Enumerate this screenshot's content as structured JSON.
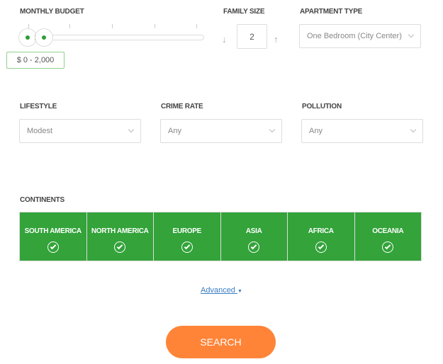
{
  "budget": {
    "label": "MONTHLY BUDGET",
    "value": "$ 0 - 2,000"
  },
  "family": {
    "label": "FAMILY SIZE",
    "value": "2",
    "down_icon": "arrow-down",
    "up_icon": "arrow-up"
  },
  "apartment": {
    "label": "APARTMENT TYPE",
    "value": "One Bedroom (City Center)"
  },
  "lifestyle": {
    "label": "LIFESTYLE",
    "value": "Modest"
  },
  "crime": {
    "label": "CRIME RATE",
    "value": "Any"
  },
  "pollution": {
    "label": "POLLUTION",
    "value": "Any"
  },
  "continents": {
    "label": "CONTINENTS",
    "items": [
      "SOUTH AMERICA",
      "NORTH AMERICA",
      "EUROPE",
      "ASIA",
      "AFRICA",
      "OCEANIA"
    ],
    "color": "#33a33a"
  },
  "advanced": "Advanced",
  "search": "SEARCH",
  "colors": {
    "accent": "#ff8438",
    "link": "#3a7cc4"
  }
}
